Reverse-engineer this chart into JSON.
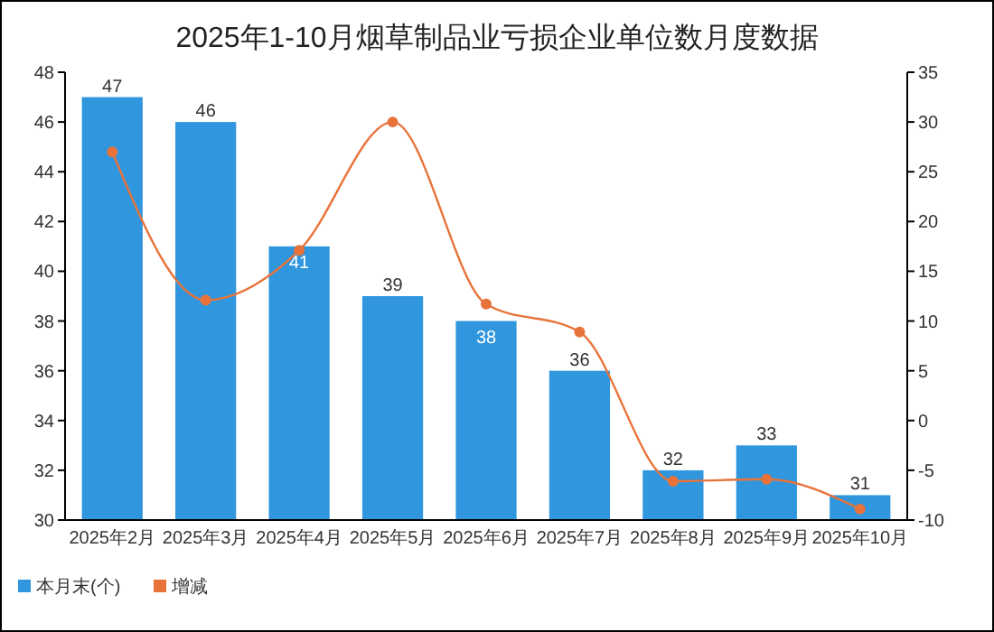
{
  "chart_data": {
    "type": "bar",
    "title": "2025年1-10月烟草制品业亏损企业单位数月度数据",
    "categories": [
      "2025年2月",
      "2025年3月",
      "2025年4月",
      "2025年5月",
      "2025年6月",
      "2025年7月",
      "2025年8月",
      "2025年9月",
      "2025年10月"
    ],
    "series": [
      {
        "name": "本月末(个)",
        "color": "#3096dd",
        "values": [
          47,
          46,
          41,
          39,
          38,
          36,
          32,
          33,
          31
        ],
        "value_labels": [
          "47",
          "46",
          "41",
          "39",
          "38",
          "36",
          "32",
          "33",
          "31"
        ]
      },
      {
        "name": "增减",
        "type": "line",
        "axis": "y2",
        "color": "#e8733a",
        "values": [
          27,
          12.1,
          17.1,
          30,
          11.7,
          8.9,
          -6.1,
          -5.9,
          -8.9
        ]
      }
    ],
    "marker": "circle",
    "legend": "bottom left",
    "ylim": [
      30,
      48
    ],
    "yticks": [
      30,
      32,
      34,
      36,
      38,
      40,
      42,
      44,
      46,
      48
    ],
    "y2lim": [
      -10,
      35
    ],
    "y2ticks": [
      -10,
      -5,
      0,
      5,
      10,
      15,
      20,
      25,
      30,
      35
    ]
  }
}
